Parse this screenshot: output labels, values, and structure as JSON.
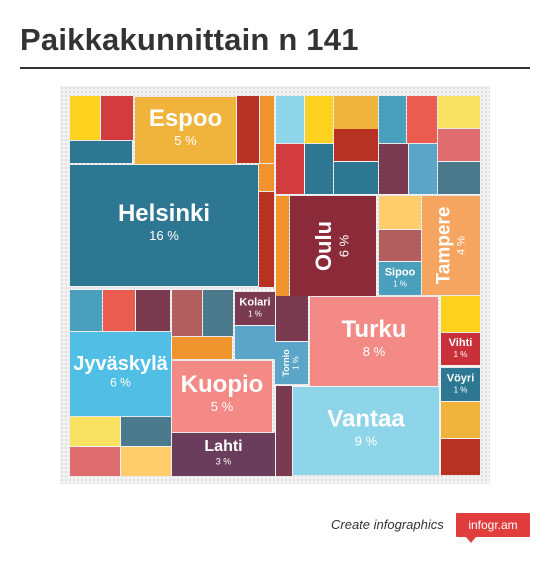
{
  "header": {
    "title": "Paikkakunnittain n 141"
  },
  "footer": {
    "cta": "Create infographics",
    "brand": "infogr.am",
    "brand_color": "#e13d3d"
  },
  "chart_data": {
    "type": "treemap",
    "title": "Paikkakunnittain n 141",
    "unit": "%",
    "labeled": [
      {
        "name": "Helsinki",
        "value": 16,
        "label": "16 %",
        "color": "#2d7793"
      },
      {
        "name": "Vantaa",
        "value": 9,
        "label": "9 %",
        "color": "#8fd5e9"
      },
      {
        "name": "Turku",
        "value": 8,
        "label": "8 %",
        "color": "#f48a85"
      },
      {
        "name": "Oulu",
        "value": 6,
        "label": "6 %",
        "color": "#8b2b3a"
      },
      {
        "name": "Jyväskylä",
        "value": 6,
        "label": "6 %",
        "color": "#51bee6"
      },
      {
        "name": "Espoo",
        "value": 5,
        "label": "5 %",
        "color": "#f0b33c"
      },
      {
        "name": "Kuopio",
        "value": 5,
        "label": "5 %",
        "color": "#f48a85"
      },
      {
        "name": "Tampere",
        "value": 4,
        "label": "4 %",
        "color": "#f6a560"
      },
      {
        "name": "Lahti",
        "value": 3,
        "label": "3 %",
        "color": "#6a3d5c"
      },
      {
        "name": "Sipoo",
        "value": 1,
        "label": "1 %",
        "color": "#4a9fbd"
      },
      {
        "name": "Kolari",
        "value": 1,
        "label": "1 %",
        "color": "#7a3b50"
      },
      {
        "name": "Tornio",
        "value": 1,
        "label": "1 %",
        "color": "#5aa5c8"
      },
      {
        "name": "Vihti",
        "value": 1,
        "label": "1 %",
        "color": "#c9303a"
      },
      {
        "name": "Vöyri",
        "value": 1,
        "label": "1 %",
        "color": "#2d7793"
      }
    ],
    "unlabeled_colors": [
      "#ffd21f",
      "#d23c3f",
      "#2d7793",
      "#b83224",
      "#f0942d",
      "#8fd5e9",
      "#f0b33c",
      "#4a9fbd",
      "#ea5b50",
      "#f9e162",
      "#df6c6e",
      "#4b7a8c",
      "#7a3b50",
      "#5aa5c8",
      "#ffcd6b",
      "#b35e5e"
    ]
  }
}
